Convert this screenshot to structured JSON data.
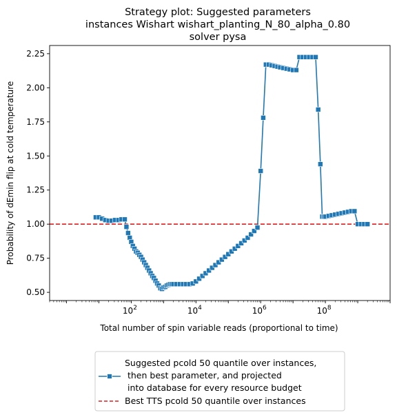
{
  "chart_data": {
    "type": "line",
    "title_lines": [
      "Strategy plot: Suggested parameters",
      "instances Wishart wishart_planting_N_80_alpha_0.80",
      "solver pysa"
    ],
    "xlabel": "Total number of spin variable reads (proportional to time)",
    "ylabel": "Probability of dEmin flip at cold temperature",
    "xscale": "log",
    "xlim": [
      0.3,
      10000000000.0
    ],
    "ylim": [
      0.44,
      2.31
    ],
    "xticks": [
      {
        "value": 100,
        "base": "10",
        "exp": "2"
      },
      {
        "value": 10000,
        "base": "10",
        "exp": "4"
      },
      {
        "value": 1000000,
        "base": "10",
        "exp": "6"
      },
      {
        "value": 100000000,
        "base": "10",
        "exp": "8"
      }
    ],
    "yticks": [
      "0.50",
      "0.75",
      "1.00",
      "1.25",
      "1.50",
      "1.75",
      "2.00",
      "2.25"
    ],
    "grid": false,
    "legend_position": "below-center",
    "series": [
      {
        "name_lines": [
          "Suggested pcold 50 quantile over instances,",
          " then best parameter, and projected",
          " into database for every resource budget"
        ],
        "color": "#1f77b4",
        "marker": "square",
        "x": [
          8,
          10,
          12.6,
          15.8,
          20,
          25,
          31.6,
          40,
          50,
          63,
          71,
          80,
          90,
          100,
          112,
          126,
          141,
          158,
          178,
          200,
          224,
          251,
          282,
          316,
          355,
          398,
          447,
          501,
          562,
          631,
          708,
          794,
          891,
          1000,
          1122,
          1259,
          1413,
          1585,
          1778,
          2000,
          2512,
          3162,
          3981,
          5012,
          6310,
          7943,
          10000,
          12589,
          15849,
          19953,
          25119,
          31623,
          39811,
          50119,
          63096,
          79433,
          100000,
          125893,
          158489,
          199526,
          251189,
          316228,
          398107,
          501187,
          630957,
          794328,
          1000000,
          1200000,
          1450000,
          1800000,
          2200000,
          2700000,
          3300000,
          4000000,
          5000000,
          6300000,
          7900000,
          10000000,
          12600000,
          15800000,
          20000000,
          25100000,
          31600000,
          40000000,
          50000000,
          60000000,
          70000000,
          80000000,
          90000000,
          100000000,
          126000000,
          158000000,
          200000000,
          251000000,
          316000000,
          398000000,
          501000000,
          631000000,
          794000000,
          1000000000,
          1260000000,
          1580000000,
          2000000000
        ],
        "y": [
          1.05,
          1.05,
          1.04,
          1.03,
          1.025,
          1.025,
          1.03,
          1.03,
          1.035,
          1.035,
          0.98,
          0.935,
          0.9,
          0.87,
          0.84,
          0.82,
          0.8,
          0.79,
          0.775,
          0.76,
          0.74,
          0.72,
          0.7,
          0.68,
          0.66,
          0.64,
          0.62,
          0.605,
          0.585,
          0.565,
          0.55,
          0.53,
          0.525,
          0.535,
          0.54,
          0.55,
          0.555,
          0.56,
          0.56,
          0.56,
          0.56,
          0.56,
          0.56,
          0.56,
          0.56,
          0.565,
          0.58,
          0.6,
          0.62,
          0.64,
          0.66,
          0.68,
          0.7,
          0.72,
          0.74,
          0.76,
          0.78,
          0.8,
          0.82,
          0.84,
          0.86,
          0.88,
          0.9,
          0.925,
          0.95,
          0.975,
          1.39,
          1.78,
          2.17,
          2.17,
          2.165,
          2.16,
          2.155,
          2.15,
          2.145,
          2.14,
          2.135,
          2.13,
          2.13,
          2.225,
          2.225,
          2.225,
          2.225,
          2.225,
          2.225,
          1.84,
          1.44,
          1.055,
          1.055,
          1.055,
          1.06,
          1.065,
          1.07,
          1.075,
          1.08,
          1.085,
          1.09,
          1.095,
          1.095,
          1.0,
          1.0,
          1.0,
          1.0
        ]
      },
      {
        "name": "Best TTS pcold 50 quantile over instances",
        "color": "#e41a1c",
        "style": "dashed",
        "y_constant": 1.0
      }
    ]
  }
}
